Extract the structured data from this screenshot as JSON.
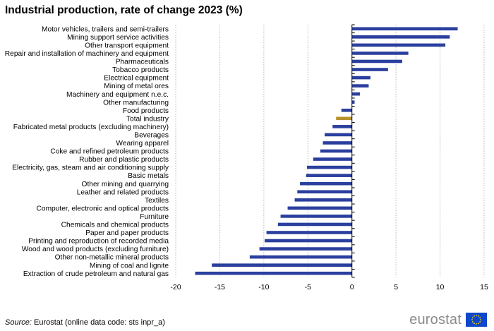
{
  "chart_data": {
    "type": "bar",
    "orientation": "horizontal",
    "title": "Industrial production, rate of change 2023 (%)",
    "xlabel": "",
    "ylabel": "",
    "xlim": [
      -20,
      15
    ],
    "xticks": [
      -20,
      -15,
      -10,
      -5,
      0,
      5,
      10,
      15
    ],
    "grid": "vertical dotted",
    "categories": [
      "Motor vehicles, trailers and semi-trailers",
      "Mining support service activities",
      "Other transport equipment",
      "Repair and installation of machinery and equipment",
      "Pharmaceuticals",
      "Tobacco products",
      "Electrical equipment",
      "Mining of metal ores",
      "Machinery and equipment n.e.c.",
      "Other manufacturing",
      "Food products",
      "Total industry",
      "Fabricated metal products (excluding machinery)",
      "Beverages",
      "Wearing apparel",
      "Coke and refined petroleum products",
      "Rubber and plastic products",
      "Electricity, gas, steam and air conditioning supply",
      "Basic metals",
      "Other mining and quarrying",
      "Leather and related products",
      "Textiles",
      "Computer, electronic and optical products",
      "Furniture",
      "Chemicals and chemical products",
      "Paper and paper products",
      "Printing and reproduction of recorded media",
      "Wood and wood products (excluding furniture)",
      "Other non-metallic mineral products",
      "Mining of coal and lignite",
      "Extraction of crude petroleum and natural gas"
    ],
    "values": [
      12.0,
      11.1,
      10.6,
      6.4,
      5.7,
      4.1,
      2.1,
      1.9,
      0.9,
      0.3,
      -1.2,
      -1.8,
      -2.2,
      -3.1,
      -3.3,
      -3.6,
      -4.4,
      -5.1,
      -5.2,
      -5.9,
      -6.2,
      -6.5,
      -7.3,
      -8.1,
      -8.4,
      -9.7,
      -9.9,
      -10.5,
      -11.6,
      -15.9,
      -17.8
    ],
    "highlight": "Total industry",
    "colors": {
      "bar": "#2a3f9e",
      "highlight": "#b8912a",
      "grid": "#b8b8b8",
      "axis": "#000000"
    }
  },
  "footer": {
    "source_label": "Source:",
    "source_text": " Eurostat (online data code: sts inpr_a)"
  },
  "logo": {
    "text": "eurostat",
    "flag_colors": {
      "field": "#0e47cb",
      "stars": "#ffdd00"
    }
  }
}
